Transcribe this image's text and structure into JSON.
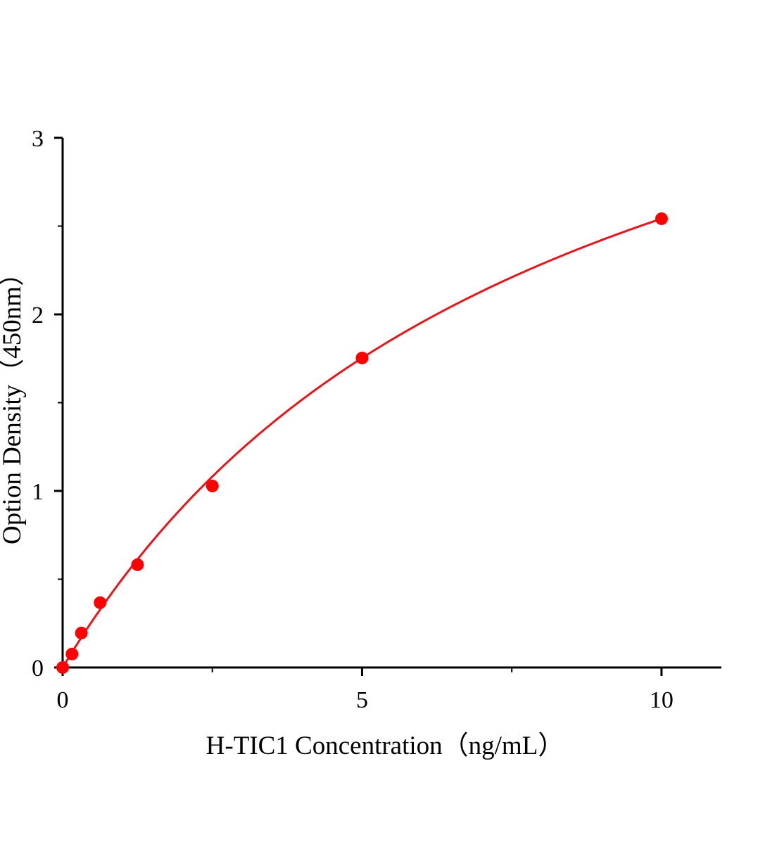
{
  "chart_data": {
    "type": "scatter",
    "title": "",
    "xlabel": "H-TIC1 Concentration（ng/mL）",
    "ylabel": "Option Density（450nm）",
    "xlim": [
      0,
      11
    ],
    "ylim": [
      0,
      3
    ],
    "x_ticks": [
      0,
      5,
      10
    ],
    "x_tick_labels": [
      "0",
      "5",
      "10"
    ],
    "x_minor_ticks": [
      2.5,
      7.5
    ],
    "y_ticks": [
      0,
      1,
      2,
      3
    ],
    "y_tick_labels": [
      "0",
      "1",
      "2",
      "3"
    ],
    "y_minor_ticks": [
      0.5,
      1.5,
      2.5
    ],
    "grid": false,
    "legend": "none",
    "point_color": "#ff0000",
    "curve_color": "#e8161b",
    "series": [
      {
        "x": [
          0,
          0.156,
          0.3125,
          0.625,
          1.25,
          2.5,
          5,
          10
        ],
        "y": [
          0.0,
          0.076,
          0.195,
          0.367,
          0.582,
          1.028,
          1.753,
          2.542
        ]
      }
    ],
    "fit_curve": true
  }
}
